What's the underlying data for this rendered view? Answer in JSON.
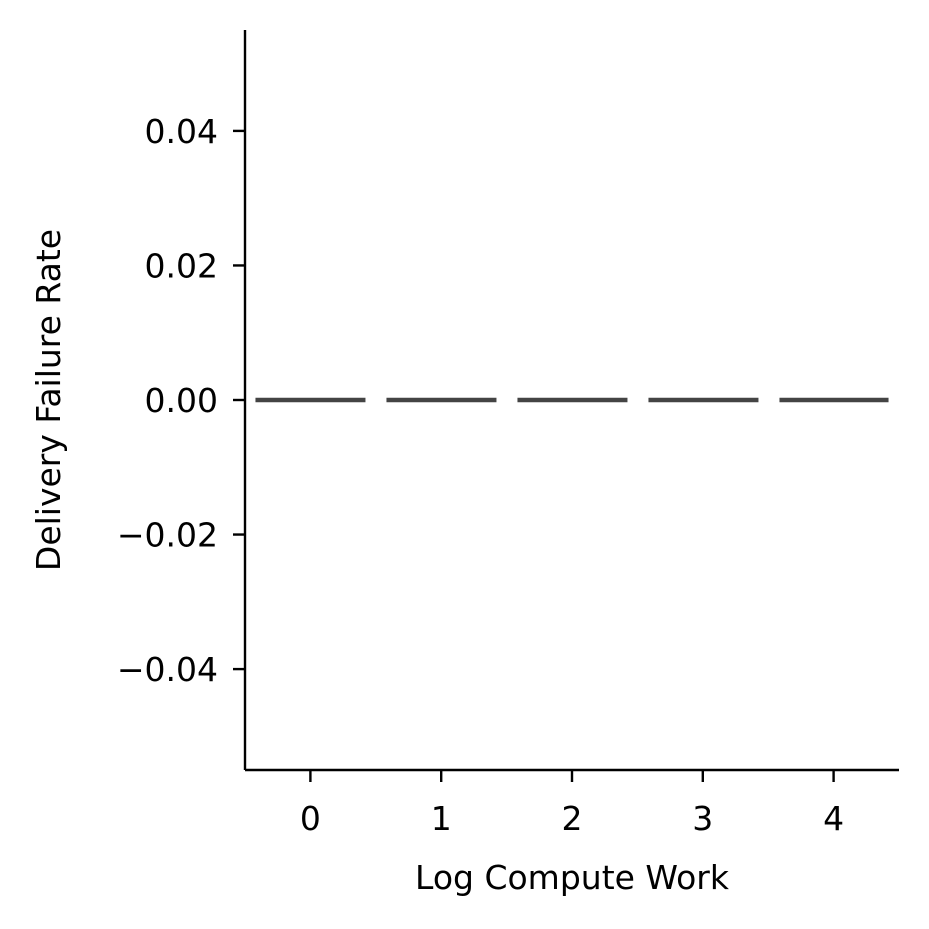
{
  "chart_data": {
    "type": "line",
    "title": "",
    "xlabel": "Log Compute Work",
    "ylabel": "Delivery Failure Rate",
    "x": [
      0,
      1,
      2,
      3,
      4
    ],
    "series": [
      {
        "values": [
          0,
          0,
          0,
          0,
          0
        ],
        "color": "#444444",
        "style": "dashed"
      }
    ],
    "xlim": [
      -0.5,
      4.5
    ],
    "ylim": [
      -0.055,
      0.055
    ],
    "xticks": [
      0,
      1,
      2,
      3,
      4
    ],
    "xtick_labels": [
      "0",
      "1",
      "2",
      "3",
      "4"
    ],
    "yticks": [
      -0.04,
      -0.02,
      0.0,
      0.02,
      0.04
    ],
    "ytick_labels": [
      "−0.04",
      "−0.02",
      "0.00",
      "0.02",
      "0.04"
    ],
    "grid": false,
    "legend": "none"
  }
}
